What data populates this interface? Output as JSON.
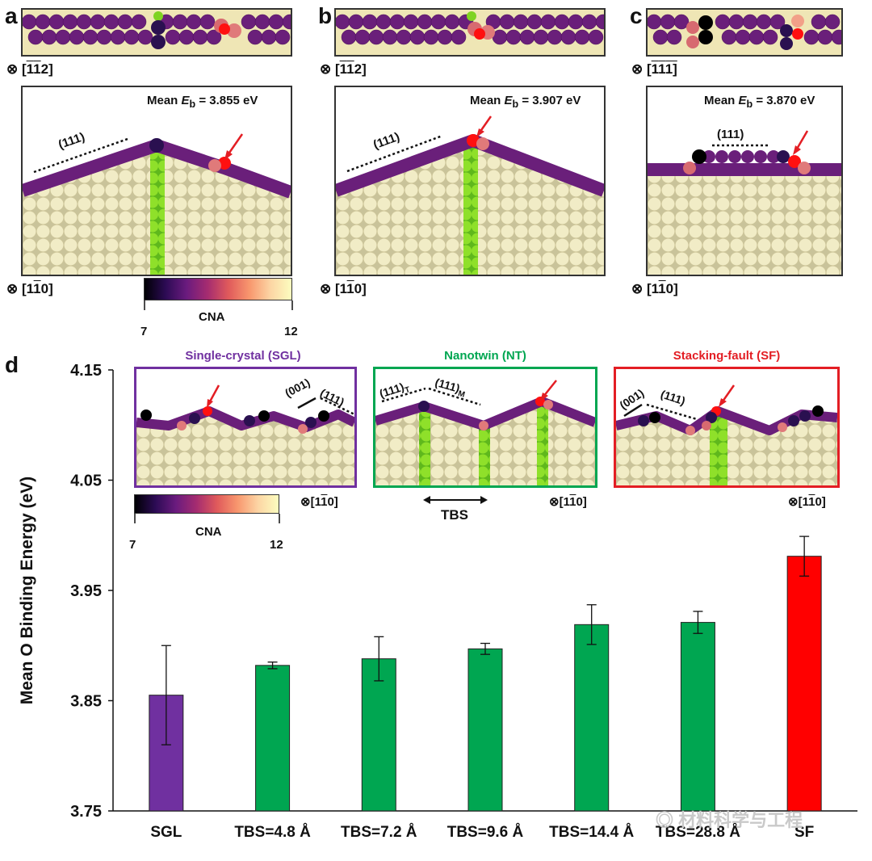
{
  "panels": {
    "a": {
      "label": "a",
      "top_view_dir_pre": "⊗ [",
      "top_view_dir_a": "1",
      "top_view_dir_b": "1",
      "top_view_dir_post": "2]",
      "mean_label": "Mean ",
      "mean_sym": "E",
      "mean_sub": "b",
      "mean_value": " = 3.855 eV",
      "plane": "(111)",
      "side_dir_pre": "⊗ [1",
      "side_dir_ov": "1",
      "side_dir_post": "0]"
    },
    "b": {
      "label": "b",
      "top_view_dir_pre": "⊗ [",
      "top_view_dir_a": "1",
      "top_view_dir_b": "1",
      "top_view_dir_post": "2]",
      "mean_label": "Mean ",
      "mean_sym": "E",
      "mean_sub": "b",
      "mean_value": " = 3.907 eV",
      "plane": "(111)",
      "side_dir_pre": "⊗ [1",
      "side_dir_ov": "1",
      "side_dir_post": "0]"
    },
    "c": {
      "label": "c",
      "top_view_dir_pre": "⊗ [",
      "top_view_dir_a": "1",
      "top_view_dir_b": "1",
      "top_view_dir_post": "1]",
      "mean_label": "Mean ",
      "mean_sym": "E",
      "mean_sub": "b",
      "mean_value": " = 3.870 eV",
      "plane": "(111)",
      "side_dir_pre": "⊗ [1",
      "side_dir_ov": "1",
      "side_dir_post": "0]"
    },
    "d": {
      "label": "d"
    }
  },
  "colorbar": {
    "title": "CNA",
    "min": "7",
    "max": "12"
  },
  "insets": {
    "sgl": {
      "title": "Single-crystal (SGL)",
      "color": "#7030a0",
      "plane1": "(001)",
      "plane2": "(111)",
      "dir_pre": "⊗[1",
      "dir_ov": "1",
      "dir_post": "0]"
    },
    "nt": {
      "title": "Nanotwin (NT)",
      "color": "#00a651",
      "plane1": "(111)",
      "plane1_sub": "T",
      "plane2": "(111)",
      "plane2_sub": "M",
      "tbs": "TBS",
      "dir_pre": "⊗[1",
      "dir_ov": "1",
      "dir_post": "0]"
    },
    "sf": {
      "title": "Stacking-fault (SF)",
      "color": "#e31e24",
      "plane1": "(001)",
      "plane2": "(111)",
      "dir_pre": "⊗[1",
      "dir_ov": "1",
      "dir_post": "0]"
    }
  },
  "watermark": "材料科学与工程",
  "chart_data": {
    "type": "bar",
    "ylabel": "Mean O Binding Energy (eV)",
    "ylim": [
      3.75,
      4.15
    ],
    "yticks": [
      "4.15",
      "4.05",
      "3.95",
      "3.85",
      "3.75"
    ],
    "categories": [
      "SGL",
      "TBS=4.8 Å",
      "TBS=7.2 Å",
      "TBS=9.6 Å",
      "TBS=14.4 Å",
      "TBS=28.8 Å",
      "SF"
    ],
    "values": [
      3.855,
      3.882,
      3.888,
      3.897,
      3.919,
      3.921,
      3.981
    ],
    "errors": [
      0.045,
      0.003,
      0.02,
      0.005,
      0.018,
      0.01,
      0.018
    ],
    "colors": [
      "#7030a0",
      "#00a651",
      "#00a651",
      "#00a651",
      "#00a651",
      "#00a651",
      "#ff0000"
    ]
  }
}
